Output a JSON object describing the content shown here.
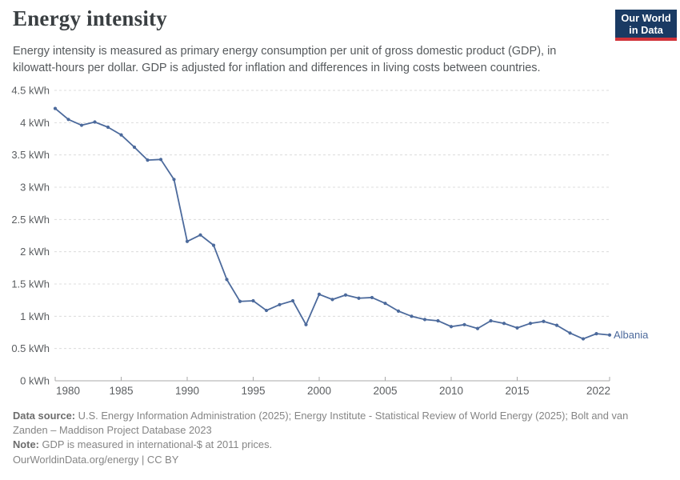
{
  "header": {
    "title": "Energy intensity",
    "subtitle": "Energy intensity is measured as primary energy consumption per unit of gross domestic product (GDP), in kilowatt-hours per dollar. GDP is adjusted for inflation and differences in living costs between countries.",
    "logo": {
      "line1": "Our World",
      "line2": "in Data",
      "bg_color": "#1a3a63",
      "bar_color": "#d13239"
    }
  },
  "chart_data": {
    "type": "line",
    "title": "Energy intensity",
    "unit": "kWh",
    "xlim": [
      1980,
      2022
    ],
    "ylim": [
      0,
      4.5
    ],
    "grid": "horizontal-dashed",
    "legend_position": "end-of-line-label",
    "x_ticks": [
      {
        "value": 1980,
        "label": "1980"
      },
      {
        "value": 1985,
        "label": "1985"
      },
      {
        "value": 1990,
        "label": "1990"
      },
      {
        "value": 1995,
        "label": "1995"
      },
      {
        "value": 2000,
        "label": "2000"
      },
      {
        "value": 2005,
        "label": "2005"
      },
      {
        "value": 2010,
        "label": "2010"
      },
      {
        "value": 2015,
        "label": "2015"
      },
      {
        "value": 2022,
        "label": "2022"
      }
    ],
    "y_ticks": [
      {
        "value": 0,
        "label": "0 kWh"
      },
      {
        "value": 0.5,
        "label": "0.5 kWh"
      },
      {
        "value": 1,
        "label": "1 kWh"
      },
      {
        "value": 1.5,
        "label": "1.5 kWh"
      },
      {
        "value": 2,
        "label": "2 kWh"
      },
      {
        "value": 2.5,
        "label": "2.5 kWh"
      },
      {
        "value": 3,
        "label": "3 kWh"
      },
      {
        "value": 3.5,
        "label": "3.5 kWh"
      },
      {
        "value": 4,
        "label": "4 kWh"
      },
      {
        "value": 4.5,
        "label": "4.5 kWh"
      }
    ],
    "series": [
      {
        "name": "Albania",
        "color": "#4c6a9c",
        "x": [
          1980,
          1981,
          1982,
          1983,
          1984,
          1985,
          1986,
          1987,
          1988,
          1989,
          1990,
          1991,
          1992,
          1993,
          1994,
          1995,
          1996,
          1997,
          1998,
          1999,
          2000,
          2001,
          2002,
          2003,
          2004,
          2005,
          2006,
          2007,
          2008,
          2009,
          2010,
          2011,
          2012,
          2013,
          2014,
          2015,
          2016,
          2017,
          2018,
          2019,
          2020,
          2021,
          2022
        ],
        "values": [
          4.22,
          4.05,
          3.96,
          4.01,
          3.93,
          3.81,
          3.62,
          3.42,
          3.43,
          3.12,
          2.16,
          2.26,
          2.1,
          1.57,
          1.23,
          1.24,
          1.09,
          1.18,
          1.24,
          0.87,
          1.34,
          1.26,
          1.33,
          1.28,
          1.29,
          1.2,
          1.08,
          1.0,
          0.95,
          0.93,
          0.84,
          0.87,
          0.81,
          0.93,
          0.89,
          0.82,
          0.89,
          0.92,
          0.86,
          0.74,
          0.65,
          0.73,
          0.71
        ]
      }
    ]
  },
  "colors": {
    "accent_line": "#4c6a9c",
    "gridline": "#dcdcdc",
    "axis": "#a9a9a9",
    "axis_text": "#5b5e61"
  },
  "footer": {
    "data_source_label": "Data source:",
    "data_source_text": " U.S. Energy Information Administration (2025); Energy Institute - Statistical Review of World Energy (2025); Bolt and van Zanden – Maddison Project Database 2023",
    "note_label": "Note:",
    "note_text": " GDP is measured in international-$ at 2011 prices.",
    "url": "OurWorldinData.org/energy",
    "separator": " | ",
    "license": "CC BY"
  }
}
